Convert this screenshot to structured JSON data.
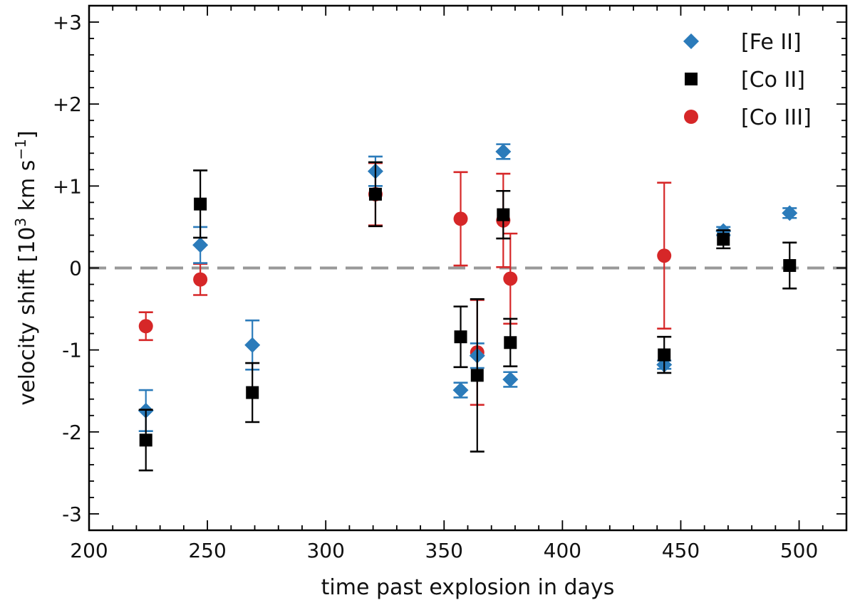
{
  "chart_data": {
    "type": "scatter",
    "xlabel": "time past explosion in days",
    "ylabel": "velocity shift [10",
    "ylabel_sup": "3",
    "ylabel_unit": " km s",
    "ylabel_unit_sup": "−1",
    "ylabel_end": "]",
    "xlim": [
      200,
      520
    ],
    "ylim": [
      -3.2,
      3.2
    ],
    "x_ticks": [
      200,
      250,
      300,
      350,
      400,
      450,
      500
    ],
    "x_tick_labels": [
      "200",
      "250",
      "300",
      "350",
      "400",
      "450",
      "500"
    ],
    "y_ticks": [
      -3,
      -2,
      -1,
      0,
      1,
      2,
      3
    ],
    "y_tick_labels": [
      "-3",
      "-2",
      "-1",
      "0",
      "+1",
      "+2",
      "+3"
    ],
    "reference_line": {
      "y": 0,
      "style": "dashed",
      "color": "#999999"
    },
    "legend_position": "top-right",
    "series": [
      {
        "name": "[Fe II]",
        "marker": "diamond",
        "color": "#2b7bba",
        "points": [
          {
            "x": 224,
            "y": -1.74,
            "err": 0.25
          },
          {
            "x": 247,
            "y": 0.28,
            "err": 0.22
          },
          {
            "x": 269,
            "y": -0.94,
            "err": 0.3
          },
          {
            "x": 321,
            "y": 1.18,
            "err": 0.18
          },
          {
            "x": 357,
            "y": -1.49,
            "err": 0.09
          },
          {
            "x": 364,
            "y": -1.07,
            "err": 0.15
          },
          {
            "x": 375,
            "y": 1.42,
            "err": 0.09
          },
          {
            "x": 378,
            "y": -1.36,
            "err": 0.09
          },
          {
            "x": 443,
            "y": -1.18,
            "err": 0.05
          },
          {
            "x": 468,
            "y": 0.45,
            "err": 0.05
          },
          {
            "x": 496,
            "y": 0.67,
            "err": 0.06
          }
        ]
      },
      {
        "name": "[Co II]",
        "marker": "square",
        "color": "#000000",
        "points": [
          {
            "x": 224,
            "y": -2.1,
            "err": 0.37
          },
          {
            "x": 247,
            "y": 0.78,
            "err": 0.41
          },
          {
            "x": 269,
            "y": -1.52,
            "err": 0.36
          },
          {
            "x": 321,
            "y": 0.9,
            "err": 0.39
          },
          {
            "x": 357,
            "y": -0.84,
            "err": 0.37
          },
          {
            "x": 364,
            "y": -1.31,
            "err": 0.93
          },
          {
            "x": 375,
            "y": 0.65,
            "err": 0.29
          },
          {
            "x": 378,
            "y": -0.91,
            "err": 0.29
          },
          {
            "x": 443,
            "y": -1.06,
            "err": 0.22
          },
          {
            "x": 468,
            "y": 0.35,
            "err": 0.11
          },
          {
            "x": 496,
            "y": 0.03,
            "err": 0.28
          }
        ]
      },
      {
        "name": "[Co III]",
        "marker": "circle",
        "color": "#d62728",
        "points": [
          {
            "x": 224,
            "y": -0.71,
            "err": 0.17
          },
          {
            "x": 247,
            "y": -0.14,
            "err": 0.19
          },
          {
            "x": 321,
            "y": 0.9,
            "err": 0.38
          },
          {
            "x": 357,
            "y": 0.6,
            "err": 0.57
          },
          {
            "x": 364,
            "y": -1.03,
            "err": 0.64
          },
          {
            "x": 375,
            "y": 0.58,
            "err": 0.57
          },
          {
            "x": 378,
            "y": -0.13,
            "err": 0.55
          },
          {
            "x": 443,
            "y": 0.15,
            "err": 0.89
          }
        ]
      }
    ]
  }
}
